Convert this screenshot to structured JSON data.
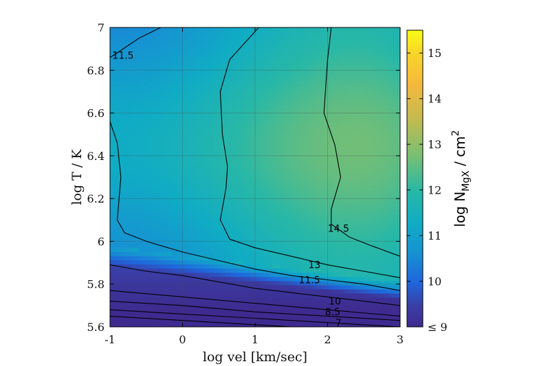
{
  "chart_data": {
    "type": "heatmap",
    "xlabel": "log vel [km/sec]",
    "ylabel": "log T / K",
    "xlim": [
      -1,
      3
    ],
    "ylim": [
      5.6,
      7
    ],
    "x_ticks": [
      "-1",
      "0",
      "1",
      "2",
      "3"
    ],
    "y_ticks": [
      "5.6",
      "5.8",
      "6",
      "6.2",
      "6.4",
      "6.6",
      "6.8",
      "7"
    ],
    "grid": true,
    "colorbar": {
      "label_base": "log N",
      "label_subscript": "MgX",
      "label_unit": " / cm",
      "label_superscript": "2",
      "range": [
        9,
        15.5
      ],
      "ticks": [
        "≤ 9",
        "10",
        "11",
        "12",
        "13",
        "14",
        "15"
      ]
    },
    "contours": [
      {
        "level": 14.5,
        "label": "14.5",
        "points": [
          [
            2.05,
            7.0
          ],
          [
            2.0,
            6.85
          ],
          [
            1.95,
            6.6
          ],
          [
            2.1,
            6.45
          ],
          [
            2.18,
            6.3
          ],
          [
            2.05,
            6.15
          ],
          [
            2.05,
            6.08
          ],
          [
            2.3,
            6.02
          ],
          [
            2.6,
            5.98
          ],
          [
            3.0,
            5.93
          ]
        ]
      },
      {
        "level": 13,
        "label": "13",
        "points": [
          [
            1.05,
            7.0
          ],
          [
            0.65,
            6.85
          ],
          [
            0.52,
            6.7
          ],
          [
            0.55,
            6.5
          ],
          [
            0.62,
            6.35
          ],
          [
            0.6,
            6.25
          ],
          [
            0.52,
            6.1
          ],
          [
            0.65,
            6.01
          ],
          [
            1.0,
            5.97
          ],
          [
            1.5,
            5.93
          ],
          [
            2.0,
            5.89
          ],
          [
            2.5,
            5.86
          ],
          [
            3.0,
            5.83
          ]
        ]
      },
      {
        "level": 11.5,
        "label": "11.5",
        "points": [
          [
            -0.3,
            7.0
          ],
          [
            -0.6,
            6.95
          ],
          [
            -0.95,
            6.87
          ],
          [
            -1.0,
            6.86
          ]
        ]
      },
      {
        "level": 11.5,
        "label": "11.5",
        "points": [
          [
            -1.0,
            6.56
          ],
          [
            -0.9,
            6.46
          ],
          [
            -0.85,
            6.3
          ],
          [
            -0.88,
            6.18
          ],
          [
            -0.9,
            6.1
          ],
          [
            -0.8,
            6.04
          ],
          [
            -0.5,
            6.0
          ],
          [
            0.0,
            5.95
          ],
          [
            0.5,
            5.91
          ],
          [
            1.0,
            5.87
          ],
          [
            1.5,
            5.84
          ],
          [
            2.0,
            5.82
          ],
          [
            2.5,
            5.8
          ],
          [
            3.0,
            5.77
          ]
        ]
      },
      {
        "level": 10,
        "label": "10",
        "points": [
          [
            -1.0,
            5.89
          ],
          [
            -0.5,
            5.86
          ],
          [
            0.0,
            5.84
          ],
          [
            0.5,
            5.81
          ],
          [
            1.0,
            5.78
          ],
          [
            1.5,
            5.76
          ],
          [
            2.0,
            5.74
          ],
          [
            2.5,
            5.72
          ],
          [
            3.0,
            5.7
          ]
        ]
      },
      {
        "level": 8.5,
        "label": "8.5",
        "points": [
          [
            -1.0,
            5.77
          ],
          [
            0.0,
            5.74
          ],
          [
            1.0,
            5.71
          ],
          [
            2.0,
            5.68
          ],
          [
            3.0,
            5.65
          ]
        ]
      },
      {
        "level": 7.75,
        "label": "",
        "points": [
          [
            -1.0,
            5.72
          ],
          [
            0.0,
            5.7
          ],
          [
            1.0,
            5.67
          ],
          [
            2.0,
            5.65
          ],
          [
            3.0,
            5.63
          ]
        ]
      },
      {
        "level": 7,
        "label": "7",
        "points": [
          [
            -1.0,
            5.68
          ],
          [
            0.0,
            5.66
          ],
          [
            1.0,
            5.64
          ],
          [
            2.0,
            5.62
          ],
          [
            3.0,
            5.6
          ]
        ]
      },
      {
        "level": 6.5,
        "label": "",
        "points": [
          [
            -1.0,
            5.65
          ],
          [
            0.0,
            5.63
          ],
          [
            1.0,
            5.61
          ],
          [
            1.5,
            5.6
          ]
        ]
      }
    ],
    "contour_labels": [
      {
        "text": "11.5",
        "x": -0.82,
        "y": 6.87
      },
      {
        "text": "14.5",
        "x": 2.15,
        "y": 6.06
      },
      {
        "text": "13",
        "x": 1.82,
        "y": 5.89
      },
      {
        "text": "11.5",
        "x": 1.75,
        "y": 5.82
      },
      {
        "text": "10",
        "x": 2.1,
        "y": 5.72
      },
      {
        "text": "8.5",
        "x": 2.07,
        "y": 5.67
      },
      {
        "text": "7",
        "x": 2.15,
        "y": 5.62
      }
    ]
  }
}
